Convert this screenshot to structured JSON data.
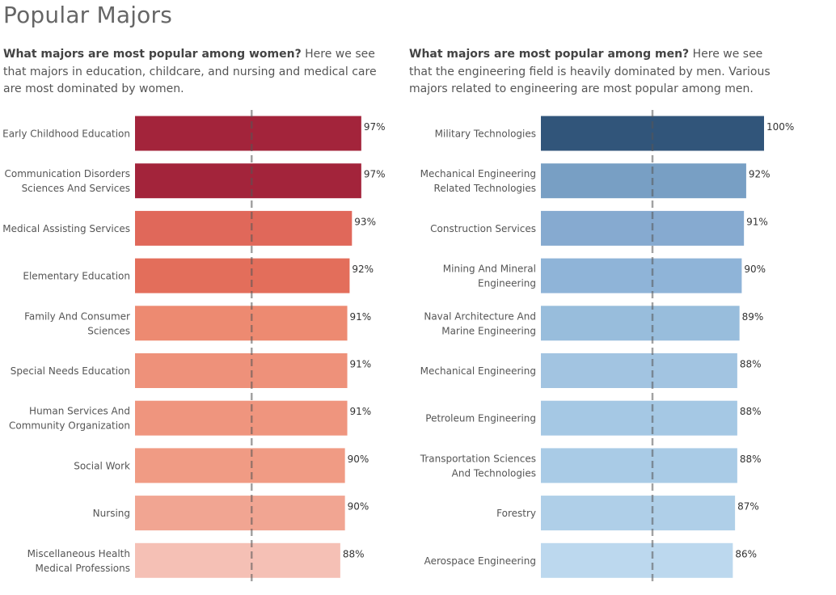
{
  "page": {
    "title": "Popular Majors"
  },
  "intro_left": {
    "bold": "What majors are most popular among women?",
    "text": " Here we see that majors in education, childcare, and nursing and medical care are most dominated by women."
  },
  "intro_right": {
    "bold": "What majors are most popular among men?",
    "text": " Here we see that the engineering field is heavily dominated by men. Various majors related to engineering are most popular among men."
  },
  "chart_data": [
    {
      "type": "bar",
      "orientation": "horizontal",
      "categories": [
        [
          "Early Childhood Education"
        ],
        [
          "Communication Disorders",
          "Sciences And Services"
        ],
        [
          "Medical Assisting Services"
        ],
        [
          "Elementary Education"
        ],
        [
          "Family And Consumer",
          "Sciences"
        ],
        [
          "Special Needs Education"
        ],
        [
          "Human Services And",
          "Community Organization"
        ],
        [
          "Social Work"
        ],
        [
          "Nursing"
        ],
        [
          "Miscellaneous Health",
          "Medical Professions"
        ]
      ],
      "values": [
        97,
        97,
        93,
        92,
        91,
        91,
        91,
        90,
        90,
        88
      ],
      "value_labels": [
        "97%",
        "97%",
        "93%",
        "92%",
        "91%",
        "91%",
        "91%",
        "90%",
        "90%",
        "88%"
      ],
      "colors": [
        "#a3243b",
        "#a3243b",
        "#e0685a",
        "#e36e5b",
        "#ed8a71",
        "#ee917a",
        "#ef957e",
        "#f09b84",
        "#f1a592",
        "#f5c0b5"
      ],
      "reference_line": 50,
      "xlim": [
        0,
        100
      ]
    },
    {
      "type": "bar",
      "orientation": "horizontal",
      "categories": [
        [
          "Military Technologies"
        ],
        [
          "Mechanical Engineering",
          "Related Technologies"
        ],
        [
          "Construction Services"
        ],
        [
          "Mining And Mineral",
          "Engineering"
        ],
        [
          "Naval Architecture And",
          "Marine Engineering"
        ],
        [
          "Mechanical Engineering"
        ],
        [
          "Petroleum Engineering"
        ],
        [
          "Transportation Sciences",
          "And Technologies"
        ],
        [
          "Forestry"
        ],
        [
          "Aerospace Engineering"
        ]
      ],
      "values": [
        100,
        92,
        91,
        90,
        89,
        88,
        88,
        88,
        87,
        86
      ],
      "value_labels": [
        "100%",
        "92%",
        "91%",
        "90%",
        "89%",
        "88%",
        "88%",
        "88%",
        "87%",
        "86%"
      ],
      "colors": [
        "#31557a",
        "#789fc4",
        "#86aad0",
        "#8fb4d8",
        "#98bddc",
        "#a2c4e1",
        "#a5c8e4",
        "#a9cbe6",
        "#afcfe8",
        "#bcd8ee"
      ],
      "reference_line": 50,
      "xlim": [
        0,
        100
      ]
    }
  ]
}
